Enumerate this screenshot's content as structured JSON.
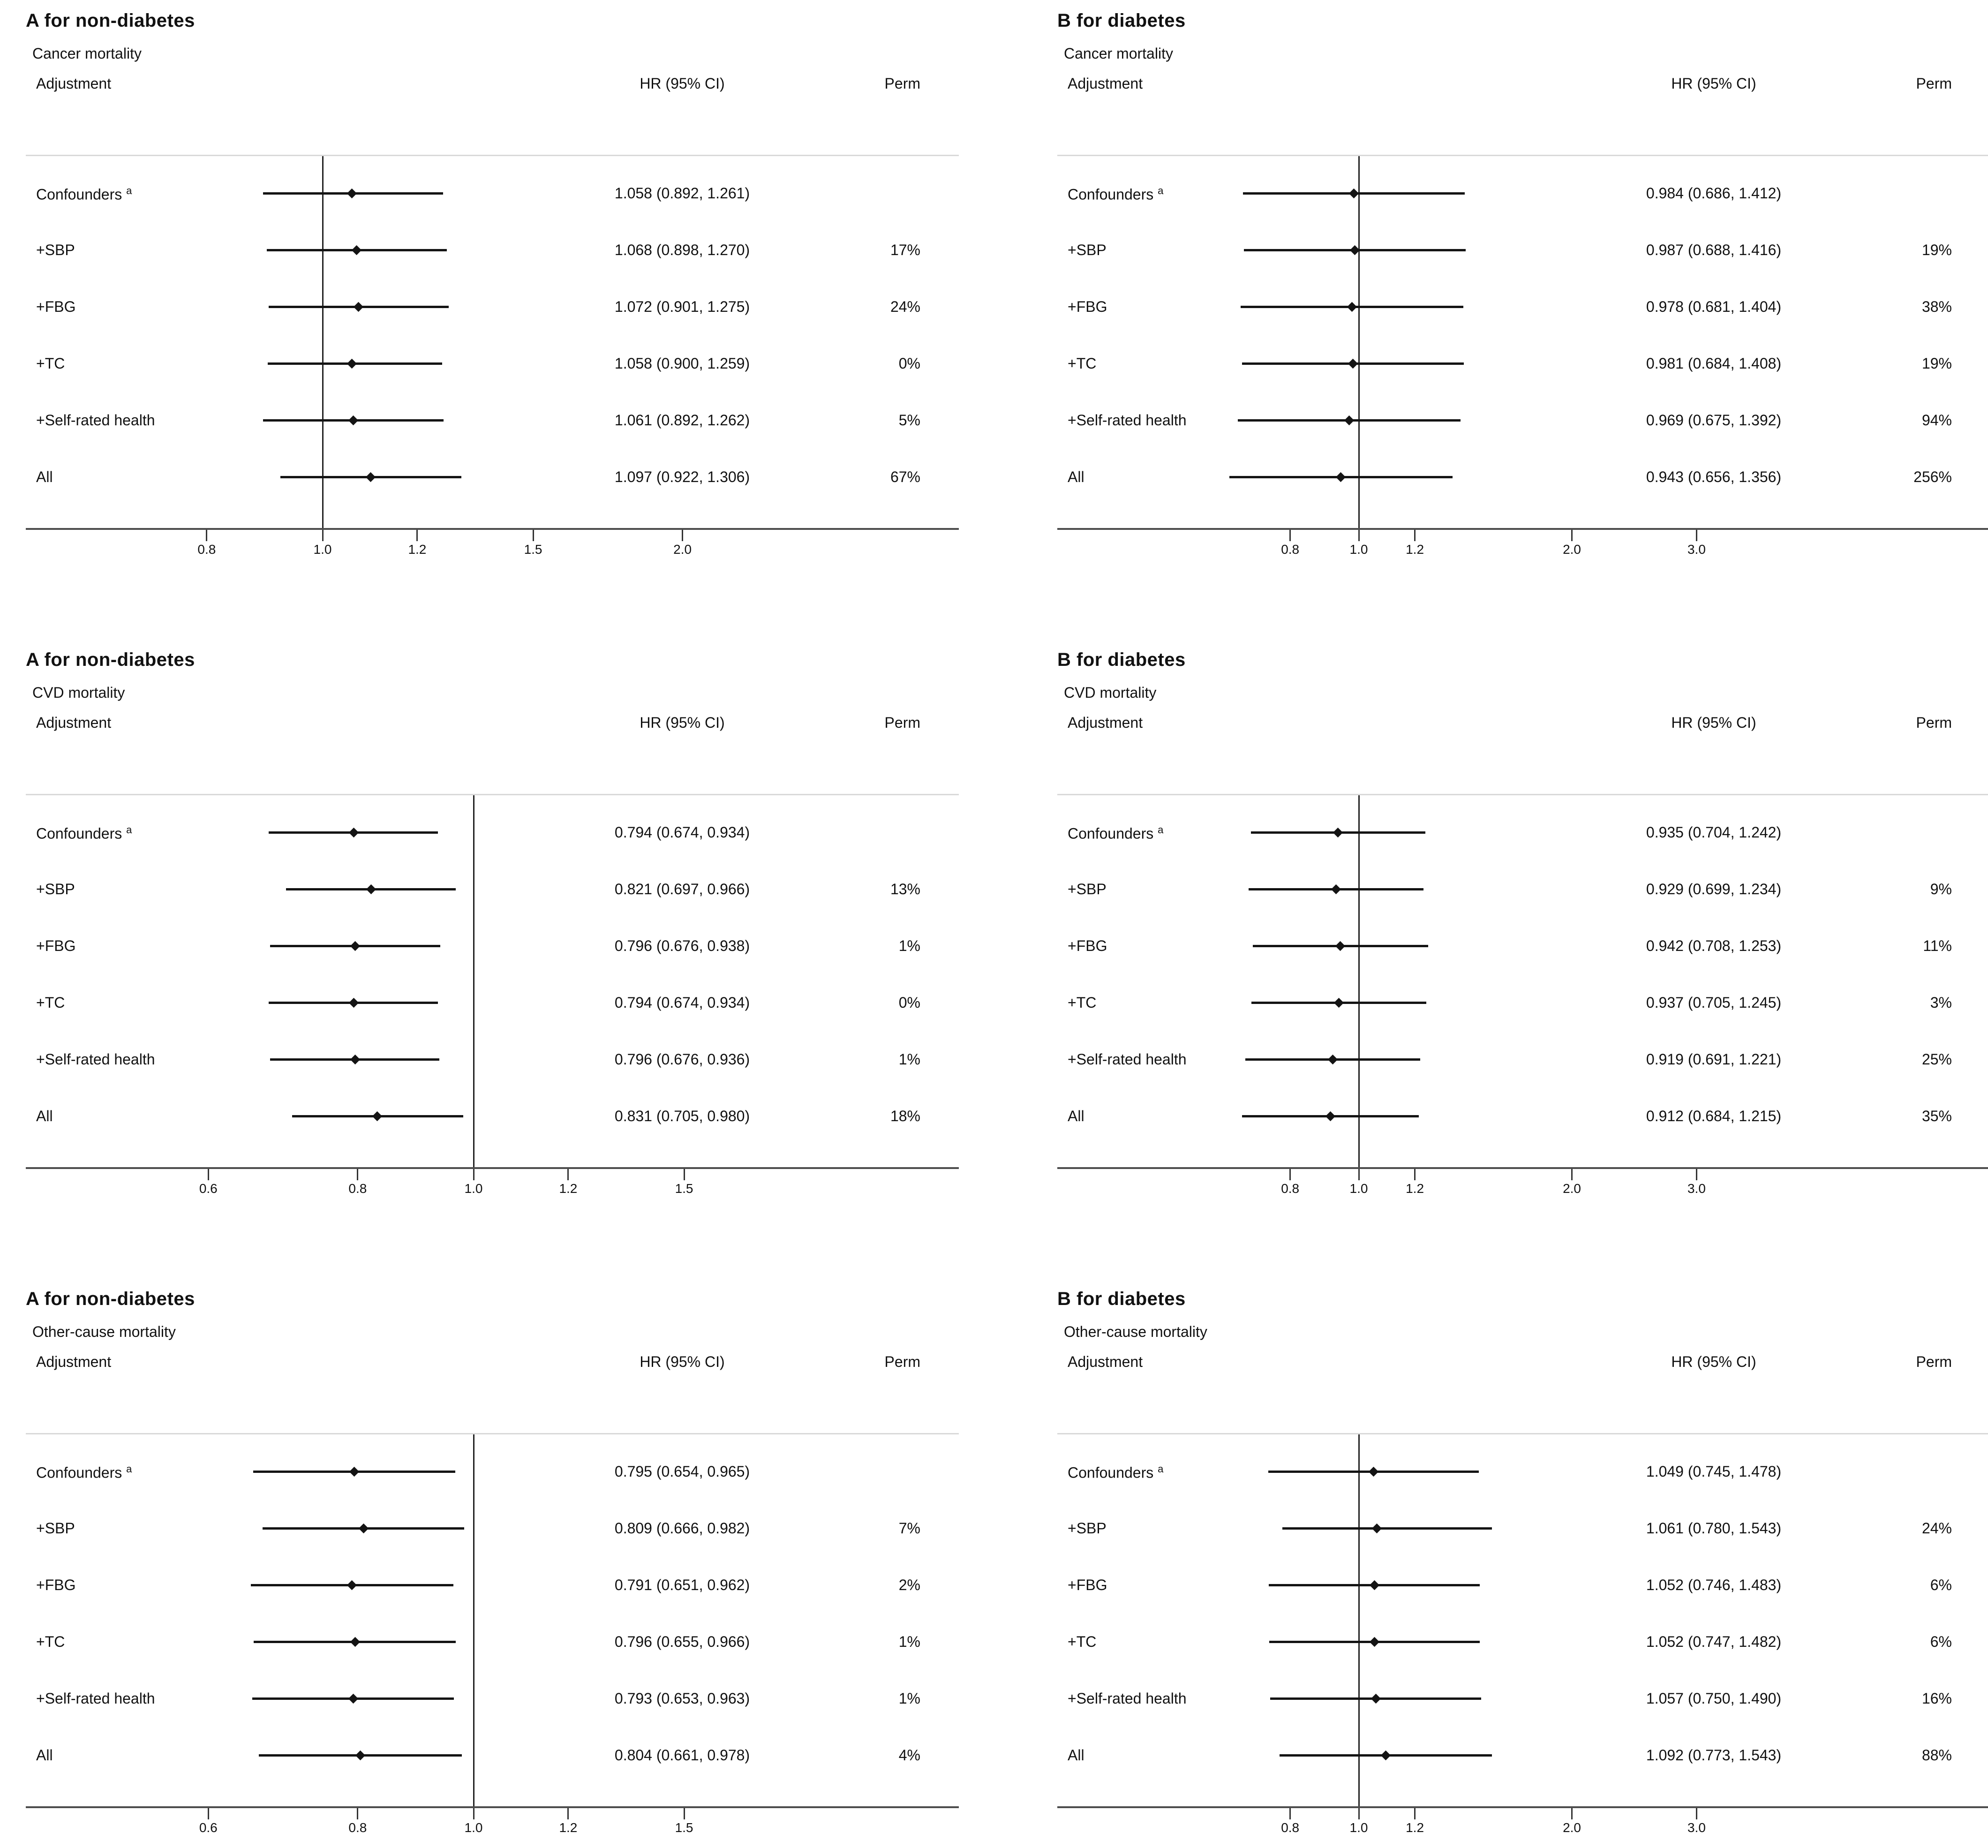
{
  "page": {
    "background": "#ffffff",
    "text_color": "#111111",
    "rule_light": "#d9d9d9",
    "rule_dark": "#4d4d4d"
  },
  "col_headers": {
    "adjustment": "Adjustment",
    "hr": "HR (95% CI)",
    "perm": "Perm"
  },
  "chart_data": [
    {
      "type": "forest",
      "title": "A for non-diabetes",
      "outcome": "Cancer mortality",
      "xscale": "log",
      "ref_line": 1.0,
      "axis_kind": "left_cancer",
      "xticks": [
        "0.8",
        "1.0",
        "1.2",
        "1.5",
        "2.0"
      ],
      "rows": [
        {
          "label": "Confounders",
          "sup": "a",
          "hr": 1.058,
          "lo": 0.892,
          "hi": 1.261,
          "hr_text": "1.058 (0.892, 1.261)",
          "perm": ""
        },
        {
          "label": "+SBP",
          "sup": "",
          "hr": 1.068,
          "lo": 0.898,
          "hi": 1.27,
          "hr_text": "1.068 (0.898, 1.270)",
          "perm": "17%"
        },
        {
          "label": "+FBG",
          "sup": "",
          "hr": 1.072,
          "lo": 0.901,
          "hi": 1.275,
          "hr_text": "1.072 (0.901, 1.275)",
          "perm": "24%"
        },
        {
          "label": "+TC",
          "sup": "",
          "hr": 1.058,
          "lo": 0.9,
          "hi": 1.259,
          "hr_text": "1.058 (0.900, 1.259)",
          "perm": "0%"
        },
        {
          "label": "+Self-rated health",
          "sup": "",
          "hr": 1.061,
          "lo": 0.892,
          "hi": 1.262,
          "hr_text": "1.061 (0.892, 1.262)",
          "perm": "5%"
        },
        {
          "label": "All",
          "sup": "",
          "hr": 1.097,
          "lo": 0.922,
          "hi": 1.306,
          "hr_text": "1.097 (0.922, 1.306)",
          "perm": "67%"
        }
      ]
    },
    {
      "type": "forest",
      "title": "B for diabetes",
      "outcome": "Cancer mortality",
      "xscale": "log",
      "ref_line": 1.0,
      "axis_kind": "right_wide",
      "xticks": [
        "0.8",
        "1.0",
        "1.2",
        "2.0",
        "3.0"
      ],
      "rows": [
        {
          "label": "Confounders",
          "sup": "a",
          "hr": 0.984,
          "lo": 0.686,
          "hi": 1.412,
          "hr_text": "0.984 (0.686, 1.412)",
          "perm": ""
        },
        {
          "label": "+SBP",
          "sup": "",
          "hr": 0.987,
          "lo": 0.688,
          "hi": 1.416,
          "hr_text": "0.987 (0.688, 1.416)",
          "perm": "19%"
        },
        {
          "label": "+FBG",
          "sup": "",
          "hr": 0.978,
          "lo": 0.681,
          "hi": 1.404,
          "hr_text": "0.978 (0.681, 1.404)",
          "perm": "38%"
        },
        {
          "label": "+TC",
          "sup": "",
          "hr": 0.981,
          "lo": 0.684,
          "hi": 1.408,
          "hr_text": "0.981 (0.684, 1.408)",
          "perm": "19%"
        },
        {
          "label": "+Self-rated health",
          "sup": "",
          "hr": 0.969,
          "lo": 0.675,
          "hi": 1.392,
          "hr_text": "0.969 (0.675, 1.392)",
          "perm": "94%"
        },
        {
          "label": "All",
          "sup": "",
          "hr": 0.943,
          "lo": 0.656,
          "hi": 1.356,
          "hr_text": "0.943 (0.656, 1.356)",
          "perm": "256%"
        }
      ]
    },
    {
      "type": "forest",
      "title": "A for non-diabetes",
      "outcome": "CVD mortality",
      "xscale": "log",
      "ref_line": 1.0,
      "axis_kind": "left_low",
      "xticks": [
        "0.6",
        "0.8",
        "1.0",
        "1.2",
        "1.5"
      ],
      "rows": [
        {
          "label": "Confounders",
          "sup": "a",
          "hr": 0.794,
          "lo": 0.674,
          "hi": 0.934,
          "hr_text": "0.794 (0.674, 0.934)",
          "perm": ""
        },
        {
          "label": "+SBP",
          "sup": "",
          "hr": 0.821,
          "lo": 0.697,
          "hi": 0.966,
          "hr_text": "0.821 (0.697, 0.966)",
          "perm": "13%"
        },
        {
          "label": "+FBG",
          "sup": "",
          "hr": 0.796,
          "lo": 0.676,
          "hi": 0.938,
          "hr_text": "0.796 (0.676, 0.938)",
          "perm": "1%"
        },
        {
          "label": "+TC",
          "sup": "",
          "hr": 0.794,
          "lo": 0.674,
          "hi": 0.934,
          "hr_text": "0.794 (0.674, 0.934)",
          "perm": "0%"
        },
        {
          "label": "+Self-rated health",
          "sup": "",
          "hr": 0.796,
          "lo": 0.676,
          "hi": 0.936,
          "hr_text": "0.796 (0.676, 0.936)",
          "perm": "1%"
        },
        {
          "label": "All",
          "sup": "",
          "hr": 0.831,
          "lo": 0.705,
          "hi": 0.98,
          "hr_text": "0.831 (0.705, 0.980)",
          "perm": "18%"
        }
      ]
    },
    {
      "type": "forest",
      "title": "B for diabetes",
      "outcome": "CVD mortality",
      "xscale": "log",
      "ref_line": 1.0,
      "axis_kind": "right_wide",
      "xticks": [
        "0.8",
        "1.0",
        "1.2",
        "2.0",
        "3.0"
      ],
      "rows": [
        {
          "label": "Confounders",
          "sup": "a",
          "hr": 0.935,
          "lo": 0.704,
          "hi": 1.242,
          "hr_text": "0.935 (0.704, 1.242)",
          "perm": ""
        },
        {
          "label": "+SBP",
          "sup": "",
          "hr": 0.929,
          "lo": 0.699,
          "hi": 1.234,
          "hr_text": "0.929 (0.699, 1.234)",
          "perm": "9%"
        },
        {
          "label": "+FBG",
          "sup": "",
          "hr": 0.942,
          "lo": 0.708,
          "hi": 1.253,
          "hr_text": "0.942 (0.708, 1.253)",
          "perm": "11%"
        },
        {
          "label": "+TC",
          "sup": "",
          "hr": 0.937,
          "lo": 0.705,
          "hi": 1.245,
          "hr_text": "0.937 (0.705, 1.245)",
          "perm": "3%"
        },
        {
          "label": "+Self-rated health",
          "sup": "",
          "hr": 0.919,
          "lo": 0.691,
          "hi": 1.221,
          "hr_text": "0.919 (0.691, 1.221)",
          "perm": "25%"
        },
        {
          "label": "All",
          "sup": "",
          "hr": 0.912,
          "lo": 0.684,
          "hi": 1.215,
          "hr_text": "0.912 (0.684, 1.215)",
          "perm": "35%"
        }
      ]
    },
    {
      "type": "forest",
      "title": "A for non-diabetes",
      "outcome": "Other-cause mortality",
      "xscale": "log",
      "ref_line": 1.0,
      "axis_kind": "left_low",
      "xticks": [
        "0.6",
        "0.8",
        "1.0",
        "1.2",
        "1.5"
      ],
      "rows": [
        {
          "label": "Confounders",
          "sup": "a",
          "hr": 0.795,
          "lo": 0.654,
          "hi": 0.965,
          "hr_text": "0.795 (0.654, 0.965)",
          "perm": ""
        },
        {
          "label": "+SBP",
          "sup": "",
          "hr": 0.809,
          "lo": 0.666,
          "hi": 0.982,
          "hr_text": "0.809 (0.666, 0.982)",
          "perm": "7%"
        },
        {
          "label": "+FBG",
          "sup": "",
          "hr": 0.791,
          "lo": 0.651,
          "hi": 0.962,
          "hr_text": "0.791 (0.651, 0.962)",
          "perm": "2%"
        },
        {
          "label": "+TC",
          "sup": "",
          "hr": 0.796,
          "lo": 0.655,
          "hi": 0.966,
          "hr_text": "0.796 (0.655, 0.966)",
          "perm": "1%"
        },
        {
          "label": "+Self-rated health",
          "sup": "",
          "hr": 0.793,
          "lo": 0.653,
          "hi": 0.963,
          "hr_text": "0.793 (0.653, 0.963)",
          "perm": "1%"
        },
        {
          "label": "All",
          "sup": "",
          "hr": 0.804,
          "lo": 0.661,
          "hi": 0.978,
          "hr_text": "0.804 (0.661, 0.978)",
          "perm": "4%"
        }
      ]
    },
    {
      "type": "forest",
      "title": "B for diabetes",
      "outcome": "Other-cause mortality",
      "xscale": "log",
      "ref_line": 1.0,
      "axis_kind": "right_wide",
      "xticks": [
        "0.8",
        "1.0",
        "1.2",
        "2.0",
        "3.0"
      ],
      "rows": [
        {
          "label": "Confounders",
          "sup": "a",
          "hr": 1.049,
          "lo": 0.745,
          "hi": 1.478,
          "hr_text": "1.049 (0.745, 1.478)",
          "perm": ""
        },
        {
          "label": "+SBP",
          "sup": "",
          "hr": 1.061,
          "lo": 0.78,
          "hi": 1.543,
          "hr_text": "1.061 (0.780, 1.543)",
          "perm": "24%"
        },
        {
          "label": "+FBG",
          "sup": "",
          "hr": 1.052,
          "lo": 0.746,
          "hi": 1.483,
          "hr_text": "1.052 (0.746, 1.483)",
          "perm": "6%"
        },
        {
          "label": "+TC",
          "sup": "",
          "hr": 1.052,
          "lo": 0.747,
          "hi": 1.482,
          "hr_text": "1.052 (0.747, 1.482)",
          "perm": "6%"
        },
        {
          "label": "+Self-rated health",
          "sup": "",
          "hr": 1.057,
          "lo": 0.75,
          "hi": 1.49,
          "hr_text": "1.057 (0.750, 1.490)",
          "perm": "16%"
        },
        {
          "label": "All",
          "sup": "",
          "hr": 1.092,
          "lo": 0.773,
          "hi": 1.543,
          "hr_text": "1.092 (0.773, 1.543)",
          "perm": "88%"
        }
      ]
    }
  ]
}
